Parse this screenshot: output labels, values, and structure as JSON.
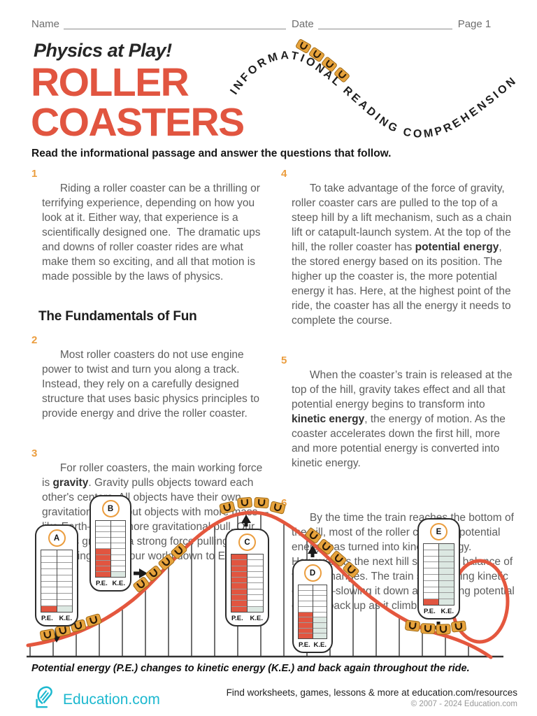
{
  "header": {
    "name_label": "Name",
    "date_label": "Date",
    "page_label": "Page 1"
  },
  "title": {
    "kicker": "Physics at Play!",
    "line1": "ROLLER",
    "line2": "COASTERS"
  },
  "banner": {
    "text": "INFORMATIONAL READING COMPREHENSION"
  },
  "instruction": "Read the informational passage and answer the questions that follow.",
  "section_heading": "The Fundamentals of Fun",
  "paragraphs": [
    {
      "num": "1",
      "segments": [
        {
          "t": "Riding a roller coaster can be a thrilling or terrifying experience, depending on how you look at it. Either way, that experience is a scientifically designed one.  The dramatic ups and downs of roller coaster rides are what make them so exciting, and all that motion is made possible by the laws of physics.",
          "b": false
        }
      ]
    },
    {
      "num": "2",
      "segments": [
        {
          "t": "Most roller coasters do not use engine power to twist and turn you along a track. Instead, they rely on a carefully designed structure that uses basic physics principles to provide energy and drive the roller coaster.",
          "b": false
        }
      ]
    },
    {
      "num": "3",
      "segments": [
        {
          "t": "For roller coasters, the main working force is ",
          "b": false
        },
        {
          "t": "gravity",
          "b": true
        },
        {
          "t": ". Gravity pulls objects toward each other's centers. All objects have their own gravitational pull, but objects with more mass—like Earth—have more gravitational pull. Our planet's gravity is a strong force pulling us and everything else in our world down to Earth.",
          "b": false
        }
      ]
    },
    {
      "num": "4",
      "segments": [
        {
          "t": "To take advantage of the force of gravity, roller coaster cars are pulled to the top of a steep hill by a lift mechanism, such as a chain lift or catapult-launch system. At the top of the hill, the roller coaster has ",
          "b": false
        },
        {
          "t": "potential energy",
          "b": true
        },
        {
          "t": ", the stored energy based on its position. The higher up the coaster is, the more potential energy it has. Here, at the highest point of the ride, the coaster has all the energy it needs to complete the course.",
          "b": false
        }
      ]
    },
    {
      "num": "5",
      "segments": [
        {
          "t": "When the coaster’s train is released at the top of the hill, gravity takes effect and all that potential energy begins to transform into ",
          "b": false
        },
        {
          "t": "kinetic energy",
          "b": true
        },
        {
          "t": ", the energy of motion. As the coaster accelerates down the first hill, more and more potential energy is converted into kinetic energy.",
          "b": false
        }
      ]
    },
    {
      "num": "6",
      "segments": [
        {
          "t": "By the time the train reaches the bottom of the hill, most of the roller coaster’s potential energy has turned into kinetic energy. However, as the next hill starts, the balance of forces changes. The train starts losing kinetic energy—slowing it down and building potential energy back up as it climbs.",
          "b": false
        }
      ]
    }
  ],
  "diagram": {
    "cards": [
      {
        "label": "A",
        "pe_label": "P.E.",
        "ke_label": "K.E.",
        "rows": 10,
        "pe_filled": 1,
        "ke_filled": 1,
        "arrow": "down"
      },
      {
        "label": "B",
        "pe_label": "P.E.",
        "ke_label": "K.E.",
        "rows": 10,
        "pe_filled": 5,
        "ke_filled": 1,
        "arrow": "right"
      },
      {
        "label": "C",
        "pe_label": "P.E.",
        "ke_label": "K.E.",
        "rows": 10,
        "pe_filled": 10,
        "ke_filled": 1,
        "arrow": "up"
      },
      {
        "label": "D",
        "pe_label": "P.E.",
        "ke_label": "K.E.",
        "rows": 10,
        "pe_filled": 5,
        "ke_filled": 4,
        "arrow": "up"
      },
      {
        "label": "E",
        "pe_label": "P.E.",
        "ke_label": "K.E.",
        "rows": 10,
        "pe_filled": 1,
        "ke_filled": 10,
        "arrow": "down"
      }
    ],
    "caption_segments": [
      {
        "t": "Potential energy ",
        "b": false
      },
      {
        "t": "(P.E.)",
        "b": true
      },
      {
        "t": " changes to kinetic energy ",
        "b": false
      },
      {
        "t": "(K.E.)",
        "b": true
      },
      {
        "t": " and back again throughout the ride.",
        "b": false
      }
    ]
  },
  "footer": {
    "brand": "Education.com",
    "resources_line": "Find worksheets, games, lessons & more at education.com/resources",
    "copyright": "© 2007 - 2024 Education.com"
  },
  "colors": {
    "accent": "#e15540",
    "track": "#e4573e",
    "car_orange": "#e7a33c",
    "ke_fill": "#dce8e2",
    "number_orange": "#eb9d3e",
    "body_text": "#5d5d5d",
    "brand_teal": "#1cb8cf"
  }
}
